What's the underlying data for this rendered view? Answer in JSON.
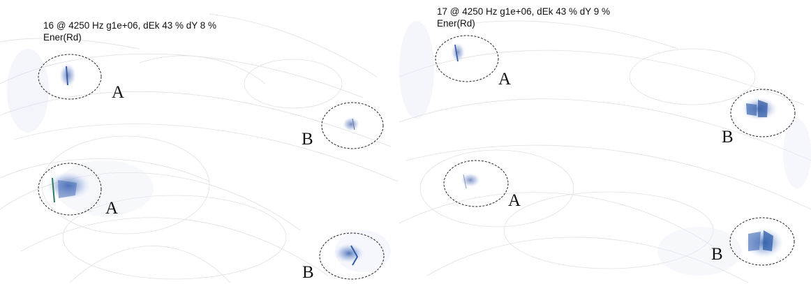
{
  "panels": [
    {
      "title": "16 @ 4250 Hz g1e+06, dEk 43 % dY 8 %",
      "subtitle": "Ener(Rd)",
      "markers": [
        "A",
        "B",
        "A",
        "B"
      ]
    },
    {
      "title": "17 @ 4250 Hz g1e+06, dEk 43 % dY 9 %",
      "subtitle": "Ener(Rd)",
      "markers": [
        "A",
        "B",
        "A",
        "B"
      ]
    }
  ]
}
